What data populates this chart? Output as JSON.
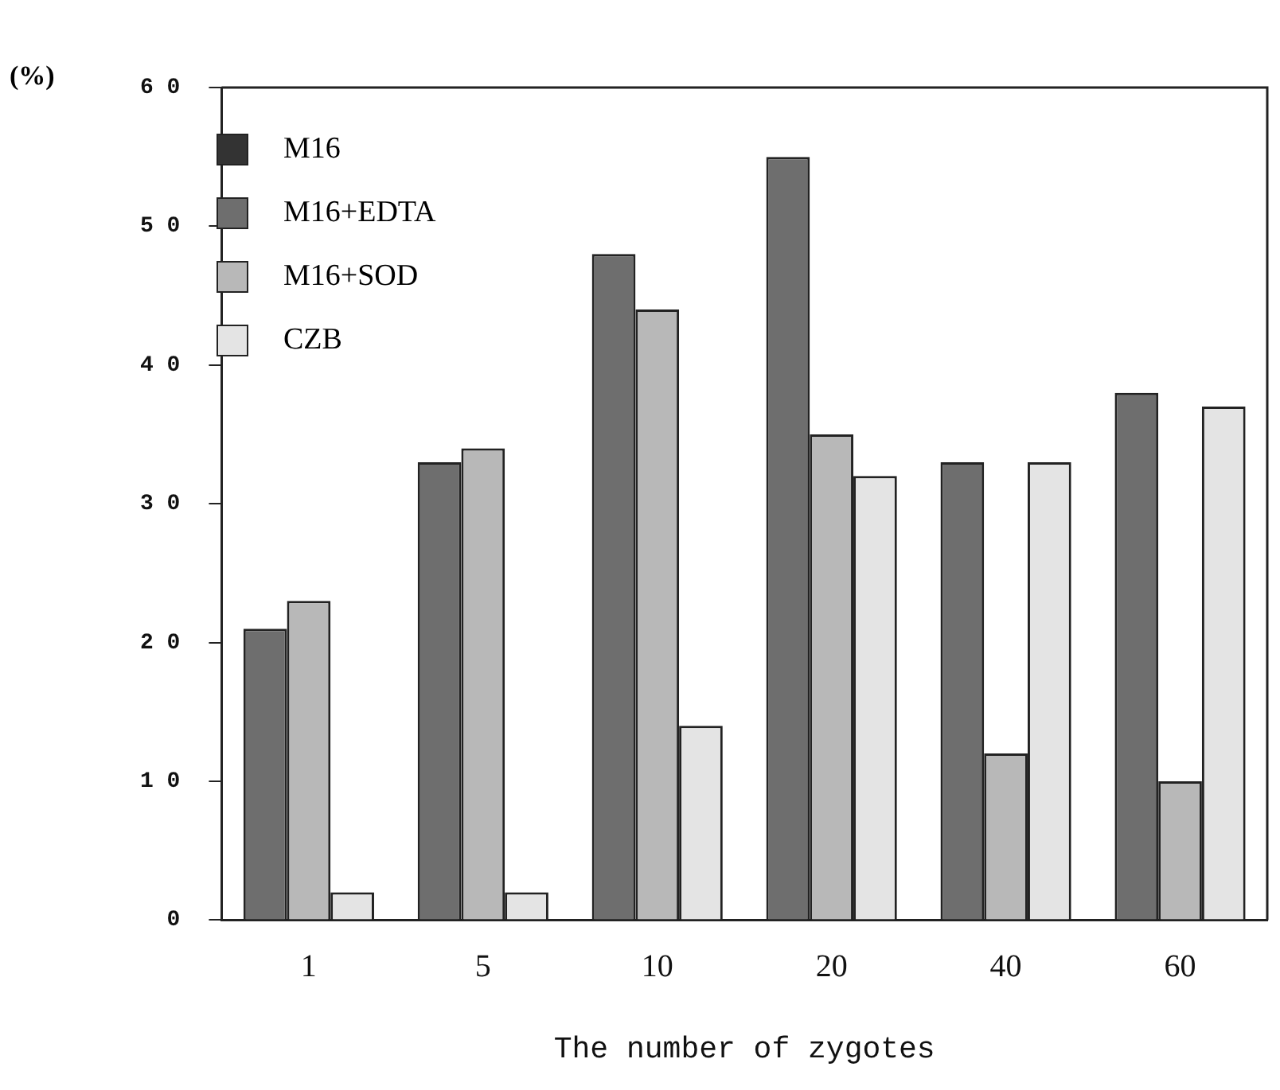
{
  "chart_data": {
    "type": "bar",
    "xlabel": "The number of zygotes",
    "ylabel": "(%)",
    "categories": [
      "1",
      "5",
      "10",
      "20",
      "40",
      "60"
    ],
    "series": [
      {
        "name": "M16",
        "color": "#333333",
        "values": [
          null,
          null,
          null,
          null,
          null,
          null
        ]
      },
      {
        "name": "M16+EDTA",
        "color": "#6e6e6e",
        "values": [
          21,
          33,
          48,
          55,
          33,
          38
        ]
      },
      {
        "name": "M16+SOD",
        "color": "#b8b8b8",
        "values": [
          23,
          34,
          44,
          35,
          12,
          10
        ]
      },
      {
        "name": "CZB",
        "color": "#e4e4e4",
        "values": [
          2,
          2,
          14,
          32,
          33,
          37
        ]
      }
    ],
    "ylim": [
      0,
      60
    ],
    "yticks": [
      0,
      10,
      20,
      30,
      40,
      50,
      60
    ],
    "grid": false,
    "legend": "top left"
  }
}
